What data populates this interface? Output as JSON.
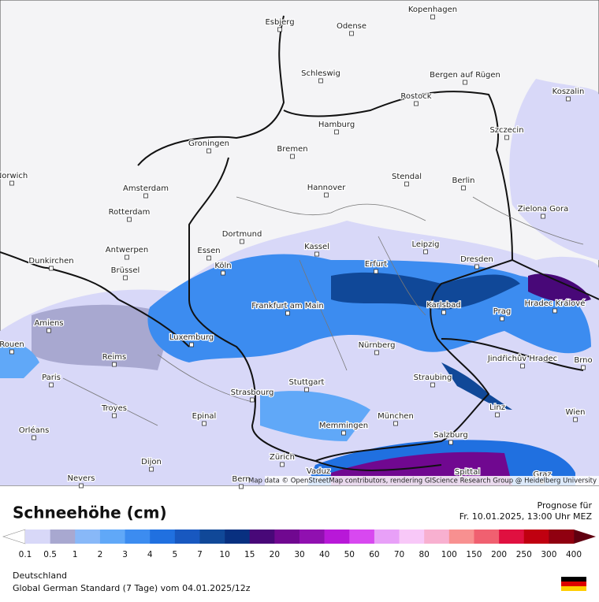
{
  "map": {
    "cities": [
      "Esbjerg",
      "Odense",
      "Kopenhagen",
      "Schleswig",
      "Bergen auf Rügen",
      "Koszalin",
      "Rostock",
      "Hamburg",
      "Szczecin",
      "Bremen",
      "Groningen",
      "Norwich",
      "Amsterdam",
      "Hannover",
      "Stendal",
      "Berlin",
      "Zielona Gora",
      "Rotterdam",
      "Dortmund",
      "Antwerpen",
      "Essen",
      "Kassel",
      "Leipzig",
      "Dunkirchen",
      "Brüssel",
      "Köln",
      "Erfurt",
      "Dresden",
      "Frankfurt am Main",
      "Karlsbad",
      "Hradec Králové",
      "Amiens",
      "Prag",
      "Luxemburg",
      "Rouen",
      "Nürnberg",
      "Reims",
      "Jindřichův Hradec",
      "Brno",
      "Paris",
      "Straubing",
      "Stuttgart",
      "Strasbourg",
      "Troyes",
      "Linz",
      "Wien",
      "Epinal",
      "München",
      "Memmingen",
      "Orléans",
      "Salzburg",
      "Zürich",
      "Dijon",
      "Vaduz",
      "Bern",
      "Nevers",
      "Spittal",
      "Graz"
    ],
    "attribution": "Map data © OpenStreetMap contributors, rendering GIScience Research Group @ Heidelberg University"
  },
  "legend": {
    "title": "Schneehöhe (cm)",
    "forecast_label": "Prognose für",
    "forecast_time": "Fr. 10.01.2025, 13:00 Uhr MEZ",
    "labels": [
      "0.1",
      "0.5",
      "1",
      "2",
      "3",
      "4",
      "5",
      "7",
      "10",
      "15",
      "20",
      "30",
      "40",
      "50",
      "60",
      "70",
      "80",
      "100",
      "150",
      "200",
      "250",
      "300",
      "400"
    ],
    "colors": [
      "#d8d8f8",
      "#a8a8d0",
      "#88b8f8",
      "#60a8f8",
      "#3c8cf0",
      "#2070e0",
      "#1858c0",
      "#104898",
      "#083080",
      "#480878",
      "#700890",
      "#9010b0",
      "#b818d8",
      "#d848f0",
      "#e8a0f8",
      "#f8c8f8",
      "#f8b0d0",
      "#f89090",
      "#f06070",
      "#e01040",
      "#c00010",
      "#900010"
    ],
    "low_color": "#ffffff",
    "high_color": "#600010"
  },
  "footer": {
    "region": "Deutschland",
    "model": "Global German Standard (7 Tage) vom  04.01.2025/12z"
  }
}
